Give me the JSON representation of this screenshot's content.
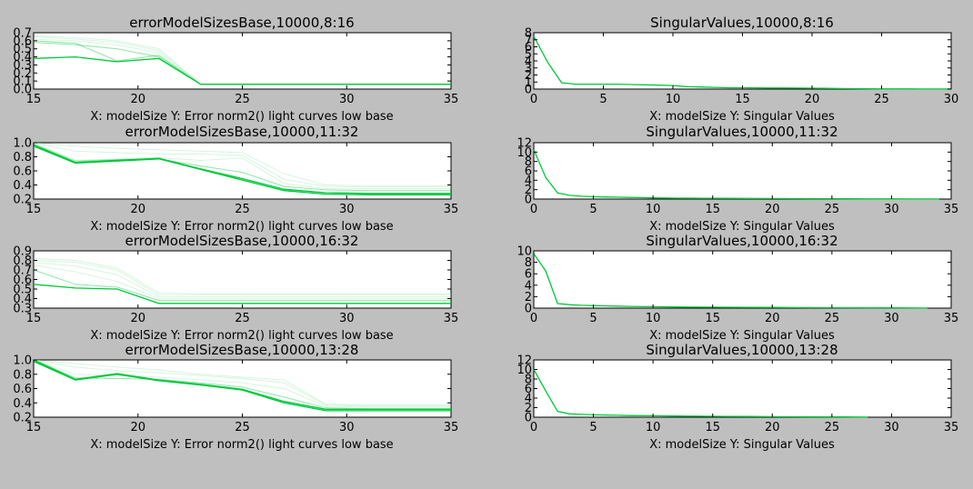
{
  "figure": {
    "background": "#bfbfbf",
    "colors": {
      "primary": "#00c83a",
      "light": "#9be6b0"
    }
  },
  "chart_data": [
    {
      "type": "line",
      "title": "errorModelSizesBase,10000,8:16",
      "xlabel": "X: modelSize Y: Error norm2() light curves low base",
      "xlim": [
        15,
        35
      ],
      "ylim": [
        0,
        0.7
      ],
      "xticks": [
        "15",
        "20",
        "25",
        "30",
        "35"
      ],
      "yticks": [
        "0.0",
        "0.1",
        "0.2",
        "0.3",
        "0.4",
        "0.5",
        "0.6",
        "0.7"
      ],
      "x": [
        15,
        17,
        19,
        21,
        23,
        25,
        27,
        29,
        31,
        33,
        35
      ],
      "series": [
        {
          "values": [
            0.38,
            0.4,
            0.34,
            0.38,
            0.06,
            0.06,
            0.06,
            0.06,
            0.06,
            0.06,
            0.06
          ],
          "style": "dark"
        },
        {
          "values": [
            0.58,
            0.55,
            0.5,
            0.4,
            0.06,
            0.06,
            0.06,
            0.06,
            0.06,
            0.06,
            0.06
          ],
          "style": "mid"
        },
        {
          "values": [
            0.6,
            0.57,
            0.35,
            0.42,
            0.06,
            0.06,
            0.06,
            0.06,
            0.06,
            0.06,
            0.06
          ],
          "style": "mid"
        },
        {
          "values": [
            0.62,
            0.6,
            0.55,
            0.45,
            0.06,
            0.06,
            0.06,
            0.06,
            0.06,
            0.06,
            0.06
          ],
          "style": "light"
        },
        {
          "values": [
            0.65,
            0.62,
            0.58,
            0.48,
            0.06,
            0.06,
            0.06,
            0.06,
            0.06,
            0.06,
            0.06
          ],
          "style": "light"
        },
        {
          "values": [
            0.66,
            0.64,
            0.6,
            0.5,
            0.06,
            0.06,
            0.06,
            0.06,
            0.06,
            0.06,
            0.06
          ],
          "style": "light"
        }
      ]
    },
    {
      "type": "line",
      "title": "SingularValues,10000,8:16",
      "xlabel": "X: modelSize Y: Singular Values",
      "xlim": [
        0,
        30
      ],
      "ylim": [
        0,
        8
      ],
      "xticks": [
        "0",
        "5",
        "10",
        "15",
        "20",
        "25",
        "30"
      ],
      "yticks": [
        "0",
        "1",
        "2",
        "3",
        "4",
        "5",
        "6",
        "7",
        "8"
      ],
      "x": [
        0,
        1,
        2,
        3,
        4,
        5,
        6,
        7,
        8,
        9,
        10,
        11,
        12,
        13,
        14,
        15,
        16,
        17,
        18,
        19,
        20,
        21,
        22,
        23,
        24,
        25,
        26,
        27,
        28,
        29,
        30
      ],
      "series": [
        {
          "values": [
            7.5,
            3.8,
            0.9,
            0.7,
            0.7,
            0.7,
            0.7,
            0.65,
            0.6,
            0.55,
            0.5,
            0.35,
            0.3,
            0.25,
            0.2,
            0.2,
            0.18,
            0.16,
            0.15,
            0.14,
            0.13,
            0.1,
            0.08,
            0.06,
            0.04,
            0.03,
            0.02,
            0.02,
            0.01,
            0.01,
            0.01
          ],
          "style": "dark"
        }
      ]
    },
    {
      "type": "line",
      "title": "errorModelSizesBase,10000,11:32",
      "xlabel": "X: modelSize Y: Error norm2() light curves low base",
      "xlim": [
        15,
        35
      ],
      "ylim": [
        0.2,
        1.0
      ],
      "xticks": [
        "15",
        "20",
        "25",
        "30",
        "35"
      ],
      "yticks": [
        "0.2",
        "0.4",
        "0.6",
        "0.8",
        "1.0"
      ],
      "x": [
        15,
        17,
        19,
        21,
        23,
        25,
        27,
        29,
        31,
        33,
        35
      ],
      "series": [
        {
          "values": [
            0.95,
            0.71,
            0.74,
            0.77,
            0.62,
            0.47,
            0.32,
            0.27,
            0.26,
            0.26,
            0.26
          ],
          "style": "dark"
        },
        {
          "values": [
            0.97,
            0.72,
            0.75,
            0.78,
            0.63,
            0.49,
            0.34,
            0.29,
            0.28,
            0.28,
            0.28
          ],
          "style": "dark"
        },
        {
          "values": [
            0.98,
            0.74,
            0.76,
            0.77,
            0.67,
            0.58,
            0.38,
            0.33,
            0.32,
            0.32,
            0.32
          ],
          "style": "mid"
        },
        {
          "values": [
            1.0,
            0.75,
            0.77,
            0.79,
            0.75,
            0.78,
            0.42,
            0.35,
            0.35,
            0.35,
            0.35
          ],
          "style": "light"
        },
        {
          "values": [
            1.02,
            0.88,
            0.86,
            0.84,
            0.84,
            0.82,
            0.48,
            0.38,
            0.37,
            0.37,
            0.37
          ],
          "style": "light"
        },
        {
          "values": [
            1.02,
            0.95,
            0.92,
            0.9,
            0.88,
            0.86,
            0.56,
            0.4,
            0.39,
            0.39,
            0.39
          ],
          "style": "light"
        }
      ]
    },
    {
      "type": "line",
      "title": "SingularValues,10000,11:32",
      "xlabel": "X: modelSize Y: Singular Values",
      "xlim": [
        0,
        35
      ],
      "ylim": [
        0,
        12
      ],
      "xticks": [
        "0",
        "5",
        "10",
        "15",
        "20",
        "25",
        "30",
        "35"
      ],
      "yticks": [
        "0",
        "2",
        "4",
        "6",
        "8",
        "10",
        "12"
      ],
      "x": [
        0,
        1,
        2,
        3,
        4,
        5,
        6,
        7,
        8,
        9,
        10,
        12,
        14,
        16,
        18,
        20,
        22,
        24,
        26,
        28,
        30,
        32,
        34
      ],
      "series": [
        {
          "values": [
            10.5,
            4.6,
            1.3,
            0.8,
            0.6,
            0.5,
            0.45,
            0.4,
            0.35,
            0.3,
            0.25,
            0.2,
            0.18,
            0.16,
            0.14,
            0.12,
            0.1,
            0.08,
            0.06,
            0.04,
            0.03,
            0.02,
            0.01
          ],
          "style": "dark"
        }
      ]
    },
    {
      "type": "line",
      "title": "errorModelSizesBase,10000,16:32",
      "xlabel": "X: modelSize Y: Error norm2() light curves low base",
      "xlim": [
        15,
        35
      ],
      "ylim": [
        0.3,
        0.9
      ],
      "xticks": [
        "15",
        "20",
        "25",
        "30",
        "35"
      ],
      "yticks": [
        "0.3",
        "0.4",
        "0.5",
        "0.6",
        "0.7",
        "0.8",
        "0.9"
      ],
      "x": [
        15,
        17,
        19,
        21,
        23,
        25,
        27,
        29,
        31,
        33,
        35
      ],
      "series": [
        {
          "values": [
            0.55,
            0.51,
            0.5,
            0.35,
            0.35,
            0.35,
            0.35,
            0.35,
            0.35,
            0.35,
            0.35
          ],
          "style": "dark"
        },
        {
          "values": [
            0.7,
            0.55,
            0.52,
            0.38,
            0.38,
            0.38,
            0.38,
            0.38,
            0.38,
            0.38,
            0.38
          ],
          "style": "mid"
        },
        {
          "values": [
            0.75,
            0.68,
            0.58,
            0.4,
            0.4,
            0.4,
            0.4,
            0.4,
            0.4,
            0.4,
            0.4
          ],
          "style": "light"
        },
        {
          "values": [
            0.78,
            0.74,
            0.65,
            0.42,
            0.42,
            0.42,
            0.42,
            0.42,
            0.42,
            0.42,
            0.42
          ],
          "style": "light"
        },
        {
          "values": [
            0.8,
            0.78,
            0.7,
            0.44,
            0.44,
            0.44,
            0.44,
            0.44,
            0.44,
            0.44,
            0.44
          ],
          "style": "light"
        },
        {
          "values": [
            0.82,
            0.8,
            0.72,
            0.46,
            0.45,
            0.45,
            0.45,
            0.45,
            0.45,
            0.45,
            0.45
          ],
          "style": "light"
        }
      ]
    },
    {
      "type": "line",
      "title": "SingularValues,10000,16:32",
      "xlabel": "X: modelSize Y: Singular Values",
      "xlim": [
        0,
        35
      ],
      "ylim": [
        0,
        10
      ],
      "xticks": [
        "0",
        "5",
        "10",
        "15",
        "20",
        "25",
        "30",
        "35"
      ],
      "yticks": [
        "0",
        "2",
        "4",
        "6",
        "8",
        "10"
      ],
      "x": [
        0,
        1,
        2,
        3,
        4,
        5,
        6,
        7,
        8,
        10,
        12,
        14,
        16,
        18,
        20,
        22,
        24,
        26,
        28,
        30,
        33
      ],
      "series": [
        {
          "values": [
            9.5,
            6.5,
            0.8,
            0.6,
            0.5,
            0.45,
            0.4,
            0.35,
            0.3,
            0.25,
            0.2,
            0.18,
            0.16,
            0.14,
            0.12,
            0.1,
            0.08,
            0.06,
            0.05,
            0.04,
            0.02
          ],
          "style": "dark"
        }
      ]
    },
    {
      "type": "line",
      "title": "errorModelSizesBase,10000,13:28",
      "xlabel": "X: modelSize Y: Error norm2() light curves low base",
      "xlim": [
        15,
        35
      ],
      "ylim": [
        0.2,
        1.0
      ],
      "xticks": [
        "15",
        "20",
        "25",
        "30",
        "35"
      ],
      "yticks": [
        "0.2",
        "0.4",
        "0.6",
        "0.8",
        "1.0"
      ],
      "x": [
        15,
        17,
        19,
        21,
        23,
        25,
        27,
        29,
        31,
        33,
        35
      ],
      "series": [
        {
          "values": [
            0.98,
            0.72,
            0.8,
            0.71,
            0.65,
            0.58,
            0.4,
            0.29,
            0.29,
            0.29,
            0.29
          ],
          "style": "dark"
        },
        {
          "values": [
            1.0,
            0.73,
            0.81,
            0.72,
            0.66,
            0.59,
            0.42,
            0.31,
            0.31,
            0.31,
            0.31
          ],
          "style": "dark"
        },
        {
          "values": [
            1.02,
            0.75,
            0.74,
            0.73,
            0.68,
            0.62,
            0.48,
            0.33,
            0.32,
            0.32,
            0.32
          ],
          "style": "mid"
        },
        {
          "values": [
            1.02,
            0.8,
            0.78,
            0.76,
            0.72,
            0.68,
            0.6,
            0.35,
            0.34,
            0.34,
            0.34
          ],
          "style": "light"
        },
        {
          "values": [
            1.03,
            0.9,
            0.85,
            0.82,
            0.78,
            0.74,
            0.68,
            0.37,
            0.36,
            0.36,
            0.36
          ],
          "style": "light"
        },
        {
          "values": [
            1.03,
            0.95,
            0.9,
            0.86,
            0.8,
            0.76,
            0.72,
            0.38,
            0.37,
            0.37,
            0.37
          ],
          "style": "light"
        }
      ]
    },
    {
      "type": "line",
      "title": "SingularValues,10000,13:28",
      "xlabel": "X: modelSize Y: Singular Values",
      "xlim": [
        0,
        35
      ],
      "ylim": [
        0,
        12
      ],
      "xticks": [
        "0",
        "5",
        "10",
        "15",
        "20",
        "25",
        "30",
        "35"
      ],
      "yticks": [
        "0",
        "2",
        "4",
        "6",
        "8",
        "10",
        "12"
      ],
      "x": [
        0,
        1,
        2,
        3,
        4,
        5,
        6,
        7,
        8,
        10,
        12,
        14,
        16,
        18,
        20,
        22,
        24,
        26,
        28
      ],
      "series": [
        {
          "values": [
            10.0,
            5.5,
            1.2,
            0.7,
            0.6,
            0.5,
            0.45,
            0.4,
            0.35,
            0.3,
            0.25,
            0.2,
            0.18,
            0.15,
            0.12,
            0.1,
            0.07,
            0.05,
            0.02
          ],
          "style": "dark"
        }
      ]
    }
  ]
}
